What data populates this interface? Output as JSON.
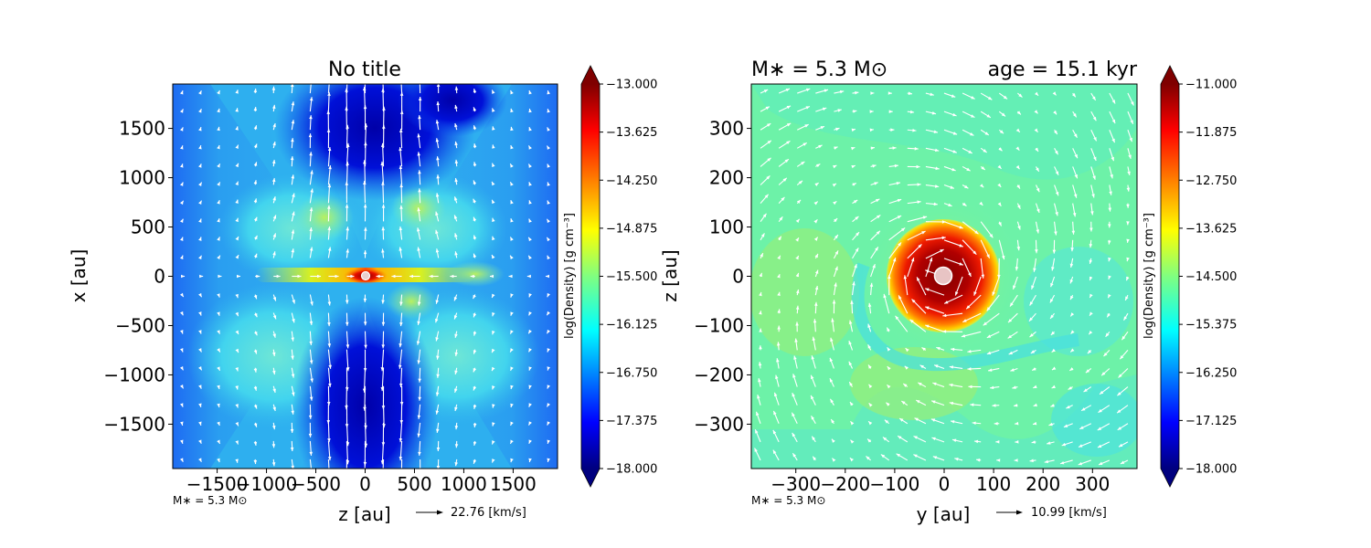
{
  "chart_data": [
    {
      "type": "heatmap",
      "title": "No title",
      "xlabel": "z [au]",
      "ylabel": "x [au]",
      "xlim": [
        -1950,
        1950
      ],
      "ylim": [
        -1950,
        1950
      ],
      "xticks": [
        -1500,
        -1000,
        -500,
        0,
        500,
        1000,
        1500
      ],
      "xtick_labels": [
        "−1500",
        "−1000",
        "−500",
        "0",
        "500",
        "1000",
        "1500"
      ],
      "yticks": [
        -1500,
        -1000,
        -500,
        0,
        500,
        1000,
        1500
      ],
      "ytick_labels": [
        "−1500",
        "−1000",
        "−500",
        "0",
        "500",
        "1000",
        "1500"
      ],
      "colorbar": {
        "label": "log(Density) [g cm⁻³]",
        "colormap": "jet",
        "range": [
          -18.0,
          -13.0
        ],
        "ticks": [
          -13.0,
          -13.625,
          -14.25,
          -14.875,
          -15.5,
          -16.125,
          -16.75,
          -17.375,
          -18.0
        ],
        "tick_labels": [
          "−13.000",
          "−13.625",
          "−14.250",
          "−14.875",
          "−15.500",
          "−16.125",
          "−16.750",
          "−17.375",
          "−18.000"
        ]
      },
      "bottom_note": "M∗ = 5.3 M⊙",
      "velocity_key": "22.76 [km/s]",
      "sink": {
        "x": 0,
        "y": 0
      }
    },
    {
      "type": "heatmap",
      "title_left": "M∗ = 5.3 M⊙",
      "title_right": "age = 15.1 kyr",
      "xlabel": "y [au]",
      "ylabel": "z [au]",
      "xlim": [
        -390,
        390
      ],
      "ylim": [
        -390,
        390
      ],
      "xticks": [
        -300,
        -200,
        -100,
        0,
        100,
        200,
        300
      ],
      "xtick_labels": [
        "−300",
        "−200",
        "−100",
        "0",
        "100",
        "200",
        "300"
      ],
      "yticks": [
        -300,
        -200,
        -100,
        0,
        100,
        200,
        300
      ],
      "ytick_labels": [
        "−300",
        "−200",
        "−100",
        "0",
        "100",
        "200",
        "300"
      ],
      "colorbar": {
        "label": "log(Density) [g cm⁻³]",
        "colormap": "jet",
        "range": [
          -18.0,
          -11.0
        ],
        "ticks": [
          -11.0,
          -11.875,
          -12.75,
          -13.625,
          -14.5,
          -15.375,
          -16.25,
          -17.125,
          -18.0
        ],
        "tick_labels": [
          "−11.000",
          "−11.875",
          "−12.750",
          "−13.625",
          "−14.500",
          "−15.375",
          "−16.250",
          "−17.125",
          "−18.000"
        ]
      },
      "bottom_note": "M∗ = 5.3 M⊙",
      "velocity_key": "10.99 [km/s]",
      "sink": {
        "x": 0,
        "y": 0
      }
    }
  ]
}
